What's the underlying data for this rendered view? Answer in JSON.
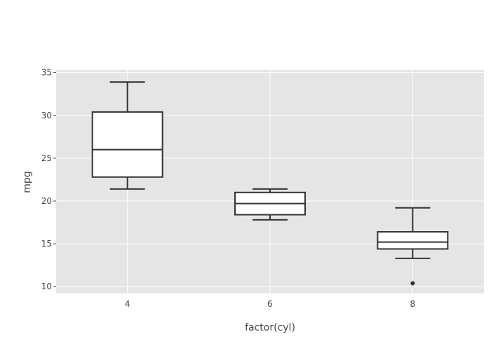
{
  "chart_data": {
    "type": "box",
    "xlabel": "factor(cyl)",
    "ylabel": "mpg",
    "ylim": [
      9.2,
      35.3
    ],
    "yticks": [
      10,
      15,
      20,
      25,
      30,
      35
    ],
    "grid": true,
    "categories": [
      "4",
      "6",
      "8"
    ],
    "boxes": [
      {
        "category": "4",
        "min": 21.4,
        "q1": 22.8,
        "median": 26.0,
        "q3": 30.4,
        "max": 33.9,
        "outliers": []
      },
      {
        "category": "6",
        "min": 17.8,
        "q1": 18.4,
        "median": 19.7,
        "q3": 21.0,
        "max": 21.4,
        "outliers": []
      },
      {
        "category": "8",
        "min": 13.3,
        "q1": 14.4,
        "median": 15.2,
        "q3": 16.4,
        "max": 19.2,
        "outliers": [
          10.4
        ]
      }
    ],
    "colors": {
      "panel": "#e5e5e5",
      "grid": "#ffffff",
      "box_fill": "#ffffff",
      "box_stroke": "#333333",
      "outlier": "#333333"
    }
  }
}
